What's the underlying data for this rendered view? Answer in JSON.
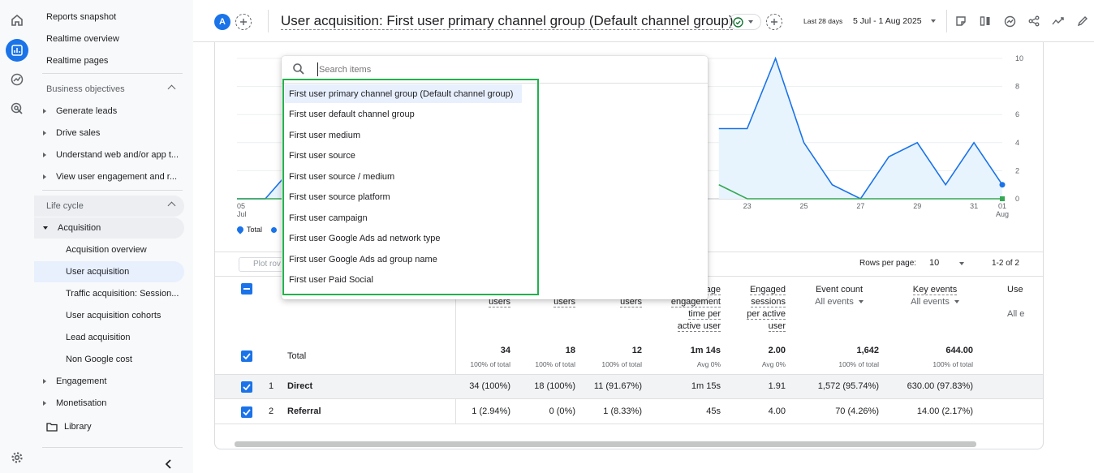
{
  "rail": {
    "icons": [
      "home-icon",
      "reports-icon",
      "explore-icon",
      "advertising-icon",
      "settings-icon"
    ]
  },
  "nav": {
    "reports_snapshot": "Reports snapshot",
    "realtime_overview": "Realtime overview",
    "realtime_pages": "Realtime pages",
    "business_objectives": "Business objectives",
    "generate_leads": "Generate leads",
    "drive_sales": "Drive sales",
    "understand": "Understand web and/or app t...",
    "view_engagement": "View user engagement and r...",
    "life_cycle": "Life cycle",
    "acquisition": "Acquisition",
    "acquisition_overview": "Acquisition overview",
    "user_acquisition": "User acquisition",
    "traffic_acquisition": "Traffic acquisition: Session...",
    "user_acquisition_cohorts": "User acquisition cohorts",
    "lead_acquisition": "Lead acquisition",
    "non_google_cost": "Non Google cost",
    "engagement": "Engagement",
    "monetisation": "Monetisation",
    "library": "Library"
  },
  "header": {
    "avatar": "A",
    "title": "User acquisition: First user primary channel group (Default channel group)",
    "date_prefix": "Last 28 days",
    "date_range": "5 Jul - 1 Aug 2025"
  },
  "chart_data": {
    "type": "line",
    "x_ticks": [
      "05 Jul",
      "23",
      "25",
      "27",
      "29",
      "31",
      "01 Aug"
    ],
    "y_ticks": [
      "10",
      "8",
      "6",
      "4",
      "2",
      "0"
    ],
    "ylim": [
      0,
      10
    ],
    "series": [
      {
        "name": "Total",
        "color": "#1a73e8",
        "values": [
          0,
          0,
          2.3,
          null,
          null,
          null,
          null,
          null,
          null,
          null,
          null,
          null,
          null,
          null,
          null,
          null,
          null,
          5,
          5,
          10,
          4,
          1,
          0,
          3,
          4,
          1,
          4,
          1
        ]
      },
      {
        "name": "",
        "color": "#34a853",
        "values": [
          0,
          0,
          0,
          null,
          null,
          null,
          null,
          null,
          null,
          null,
          null,
          null,
          null,
          null,
          null,
          null,
          null,
          1,
          0,
          0,
          0,
          0,
          0,
          0,
          0,
          0,
          0,
          0
        ]
      }
    ],
    "legend": [
      "Total"
    ]
  },
  "search": {
    "placeholder": "Search items"
  },
  "dropdown_items": [
    "First user primary channel group (Default channel group)",
    "First user default channel group",
    "First user medium",
    "First user source",
    "First user source / medium",
    "First user source platform",
    "First user campaign",
    "First user Google Ads ad network type",
    "First user Google Ads ad group name",
    "First user Paid Social"
  ],
  "table": {
    "plot_rows": "Plot rov",
    "rows_per_page_label": "Rows per page:",
    "rows_per_page": "10",
    "pagination": "1-2 of 2",
    "headers": {
      "c1": "users",
      "c2": "users",
      "c3": "users",
      "c4": [
        "age",
        "engagement",
        "time per",
        "active user"
      ],
      "c5": [
        "Engaged",
        "sessions",
        "per active",
        "user"
      ],
      "c6": "Event count",
      "c6_sub": "All events",
      "c7": "Key events",
      "c7_sub": "All events",
      "c8": "Use",
      "c8_sub": "All e"
    },
    "total": {
      "label": "Total",
      "values": [
        "34",
        "18",
        "12",
        "1m 14s",
        "2.00",
        "1,642",
        "644.00"
      ],
      "subs": [
        "100% of total",
        "100% of total",
        "100% of total",
        "Avg 0%",
        "Avg 0%",
        "100% of total",
        "100% of total"
      ]
    },
    "rows": [
      {
        "num": "1",
        "name": "Direct",
        "values": [
          "34 (100%)",
          "18 (100%)",
          "11 (91.67%)",
          "1m 15s",
          "1.91",
          "1,572 (95.74%)",
          "630.00 (97.83%)"
        ]
      },
      {
        "num": "2",
        "name": "Referral",
        "values": [
          "1 (2.94%)",
          "0 (0%)",
          "1 (8.33%)",
          "45s",
          "4.00",
          "70 (4.26%)",
          "14.00 (2.17%)"
        ]
      }
    ]
  }
}
